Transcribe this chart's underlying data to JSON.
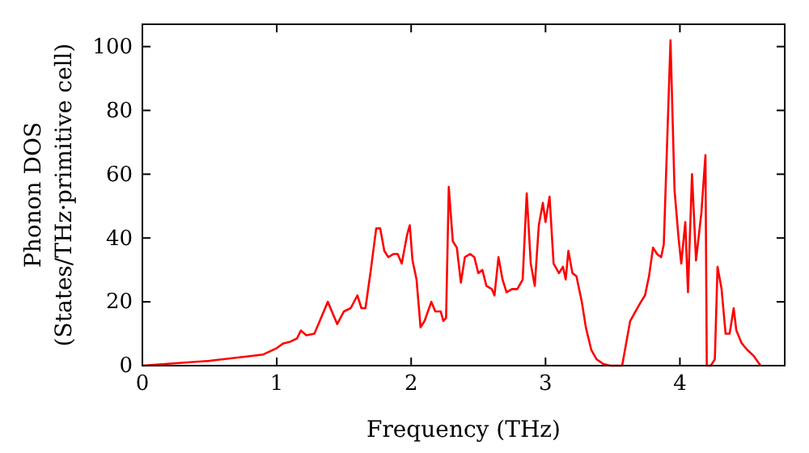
{
  "chart_data": {
    "type": "line",
    "xlabel": "Frequency (THz)",
    "ylabel": "Phonon DOS\n(States/THz·primitive cell)",
    "xlim": [
      0,
      4.78
    ],
    "ylim": [
      0,
      107
    ],
    "xticks": [
      0,
      1,
      2,
      3,
      4
    ],
    "yticks": [
      0,
      20,
      40,
      60,
      80,
      100
    ],
    "grid": false,
    "marker": "none",
    "line_style": "solid",
    "series": [
      {
        "color": "#ff0000",
        "x": [
          0,
          0.5,
          0.8,
          0.9,
          1.0,
          1.05,
          1.1,
          1.15,
          1.18,
          1.22,
          1.28,
          1.32,
          1.38,
          1.45,
          1.5,
          1.55,
          1.6,
          1.63,
          1.66,
          1.7,
          1.74,
          1.77,
          1.8,
          1.83,
          1.87,
          1.9,
          1.93,
          1.97,
          1.99,
          2.01,
          2.04,
          2.07,
          2.1,
          2.15,
          2.18,
          2.22,
          2.24,
          2.26,
          2.28,
          2.31,
          2.34,
          2.37,
          2.4,
          2.44,
          2.47,
          2.5,
          2.53,
          2.56,
          2.6,
          2.62,
          2.65,
          2.68,
          2.71,
          2.75,
          2.79,
          2.83,
          2.86,
          2.89,
          2.92,
          2.95,
          2.98,
          3.0,
          3.03,
          3.06,
          3.1,
          3.13,
          3.15,
          3.17,
          3.2,
          3.23,
          3.27,
          3.3,
          3.34,
          3.38,
          3.43,
          3.48,
          3.57,
          3.6,
          3.63,
          3.67,
          3.71,
          3.74,
          3.77,
          3.8,
          3.83,
          3.86,
          3.88,
          3.93,
          3.96,
          3.99,
          4.01,
          4.04,
          4.06,
          4.09,
          4.12,
          4.16,
          4.19,
          4.2,
          4.23,
          4.26,
          4.28,
          4.31,
          4.34,
          4.37,
          4.4,
          4.42,
          4.46,
          4.5,
          4.55,
          4.6
        ],
        "values": [
          0,
          1.5,
          3,
          3.5,
          5.5,
          7,
          7.5,
          8.5,
          11,
          9.5,
          10,
          14,
          20,
          13,
          17,
          18,
          22,
          18,
          18,
          30,
          43,
          43,
          36,
          34,
          35,
          35,
          32,
          41,
          44,
          33,
          27,
          12,
          14,
          20,
          17,
          17,
          14,
          15,
          56,
          39,
          37,
          26,
          34,
          35,
          34,
          29,
          30,
          25,
          24,
          22,
          34,
          27,
          23,
          24,
          24,
          27,
          54,
          32,
          25,
          44,
          51,
          45,
          53,
          32,
          29,
          31,
          27,
          36,
          29,
          28,
          20,
          12,
          5,
          2,
          0.5,
          0,
          0,
          7,
          14,
          17,
          20,
          22,
          28,
          37,
          35,
          34,
          38,
          102,
          55,
          40,
          32,
          45,
          23,
          60,
          33,
          48,
          66,
          0,
          0,
          2,
          31,
          24,
          10,
          10,
          18,
          11,
          7,
          5,
          3,
          0
        ]
      }
    ]
  }
}
